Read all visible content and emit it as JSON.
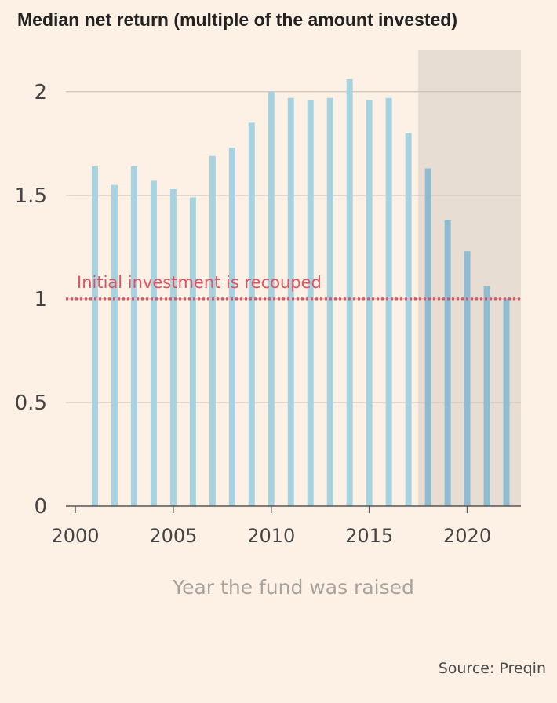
{
  "title": "Median net return (multiple of the amount invested)",
  "source": "Source: Preqin",
  "colors": {
    "background": "#fdf1e6",
    "bar": "#a7d3e1",
    "bar_shaded": "#8fbcd0",
    "shaded_region": "#e8ddd2",
    "reference_line": "#e0525f",
    "gridline": "#c5bdb4",
    "axis": "#555555"
  },
  "chart_data": {
    "type": "bar",
    "xlabel": "Year the fund was raised",
    "ylabel": "",
    "x": [
      2001,
      2002,
      2003,
      2004,
      2005,
      2006,
      2007,
      2008,
      2009,
      2010,
      2011,
      2012,
      2013,
      2014,
      2015,
      2016,
      2017,
      2018,
      2019,
      2020,
      2021,
      2022
    ],
    "values": [
      1.64,
      1.55,
      1.64,
      1.57,
      1.53,
      1.49,
      1.69,
      1.73,
      1.85,
      2.0,
      1.97,
      1.96,
      1.97,
      2.06,
      1.96,
      1.97,
      1.8,
      1.63,
      1.38,
      1.23,
      1.06,
      1.0
    ],
    "xlim": [
      2000,
      2022.7
    ],
    "ylim": [
      0,
      2.2
    ],
    "xticks": [
      2000,
      2005,
      2010,
      2015,
      2020
    ],
    "xtick_labels": [
      "2000",
      "2005",
      "2010",
      "2015",
      "2020"
    ],
    "yticks": [
      0,
      0.5,
      1,
      1.5,
      2
    ],
    "ytick_labels": [
      "0",
      "0.5",
      "1",
      "1.5",
      "2"
    ],
    "shaded_from_year": 2018,
    "reference_line": {
      "y": 1,
      "label": "Initial investment is recouped",
      "style": "dotted"
    },
    "grid": true
  }
}
